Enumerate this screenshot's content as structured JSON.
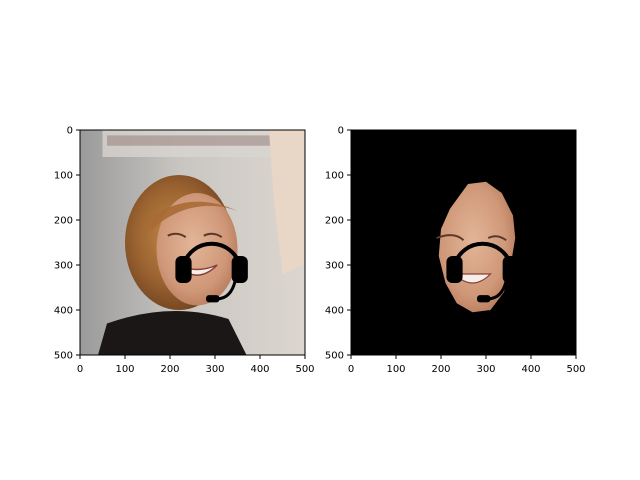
{
  "figure": {
    "background": "#ffffff",
    "panel_count": 2
  },
  "chart_data": [
    {
      "type": "image",
      "title": "",
      "xlabel": "",
      "ylabel": "",
      "xlim": [
        0,
        500
      ],
      "ylim": [
        500,
        0
      ],
      "xticks": [
        "0",
        "100",
        "200",
        "300",
        "400",
        "500"
      ],
      "yticks": [
        "0",
        "100",
        "200",
        "300",
        "400",
        "500"
      ],
      "grid": false,
      "legend": "none",
      "content": "photo of a smiling woman with shoulder-length auburn hair wearing a headset overlay",
      "overlay": {
        "type": "headset",
        "color": "#000000",
        "band_center": [
          295,
          310
        ],
        "band_radius": 65,
        "left_cup": [
          230,
          310
        ],
        "right_cup": [
          355,
          310
        ],
        "mic_end": [
          295,
          375
        ]
      }
    },
    {
      "type": "image",
      "title": "",
      "xlabel": "",
      "ylabel": "",
      "xlim": [
        0,
        500
      ],
      "ylim": [
        500,
        0
      ],
      "xticks": [
        "0",
        "100",
        "200",
        "300",
        "400",
        "500"
      ],
      "yticks": [
        "0",
        "100",
        "200",
        "300",
        "400",
        "500"
      ],
      "grid": false,
      "legend": "none",
      "content": "segmented face region on black background with headset overlay",
      "background_color": "#000000",
      "mask_region": [
        [
          260,
          120
        ],
        [
          300,
          115
        ],
        [
          335,
          140
        ],
        [
          360,
          190
        ],
        [
          365,
          240
        ],
        [
          355,
          300
        ],
        [
          340,
          360
        ],
        [
          310,
          400
        ],
        [
          270,
          405
        ],
        [
          235,
          385
        ],
        [
          210,
          340
        ],
        [
          195,
          280
        ],
        [
          200,
          220
        ],
        [
          220,
          175
        ]
      ],
      "overlay": {
        "type": "headset",
        "color": "#000000",
        "band_center": [
          295,
          310
        ],
        "band_radius": 65,
        "left_cup": [
          230,
          310
        ],
        "right_cup": [
          355,
          310
        ],
        "mic_end": [
          295,
          375
        ]
      }
    }
  ]
}
